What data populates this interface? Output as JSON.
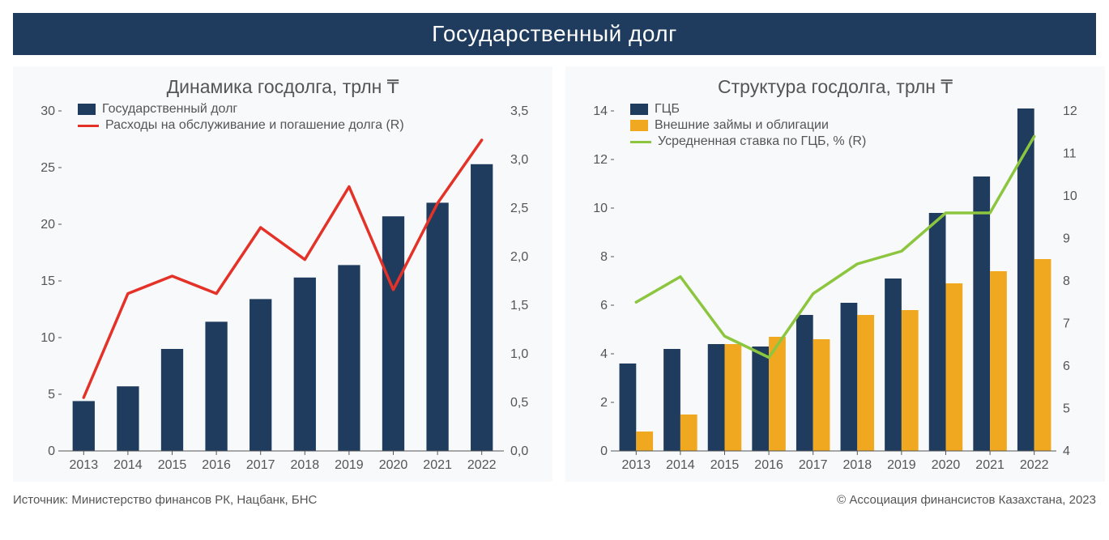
{
  "title": "Государственный долг",
  "footer_left": "Источник: Министерство финансов РК, Нацбанк, БНС",
  "footer_right": "© Ассоциация финансистов Казахстана, 2023",
  "colors": {
    "title_bg": "#1f3c5f",
    "title_text": "#ffffff",
    "panel_bg": "#f8f9fa",
    "text": "#555555",
    "bar_blue": "#1f3c5f",
    "bar_yellow": "#f0a821",
    "line_red": "#e43228",
    "line_green": "#8cc63f",
    "axis": "#555555"
  },
  "left_chart": {
    "type": "bar+line",
    "title": "Динамика госдолга, трлн ₸",
    "categories": [
      "2013",
      "2014",
      "2015",
      "2016",
      "2017",
      "2018",
      "2019",
      "2020",
      "2021",
      "2022"
    ],
    "bars": {
      "label": "Государственный долг",
      "color": "#1f3c5f",
      "values": [
        4.4,
        5.7,
        9.0,
        11.4,
        13.4,
        15.3,
        16.4,
        20.7,
        21.9,
        25.3
      ]
    },
    "line": {
      "label": "Расходы на обслуживание и погашение долга (R)",
      "color": "#e43228",
      "values": [
        0.55,
        1.62,
        1.8,
        1.62,
        2.3,
        1.97,
        2.72,
        1.66,
        2.55,
        3.2
      ]
    },
    "y_left": {
      "min": 0,
      "max": 30,
      "ticks": [
        0,
        5,
        10,
        15,
        20,
        25,
        30
      ]
    },
    "y_right": {
      "min": 0.0,
      "max": 3.5,
      "ticks": [
        "0,0",
        "0,5",
        "1,0",
        "1,5",
        "2,0",
        "2,5",
        "3,0",
        "3,5"
      ]
    },
    "bar_width": 0.5,
    "line_width": 3.5,
    "tick_fontsize": 16,
    "title_fontsize": 23
  },
  "right_chart": {
    "type": "grouped-bar+line",
    "title": "Структура госдолга, трлн ₸",
    "categories": [
      "2013",
      "2014",
      "2015",
      "2016",
      "2017",
      "2018",
      "2019",
      "2020",
      "2021",
      "2022"
    ],
    "bars_a": {
      "label": "ГЦБ",
      "color": "#1f3c5f",
      "values": [
        3.6,
        4.2,
        4.4,
        4.3,
        5.6,
        6.1,
        7.1,
        9.8,
        11.3,
        14.1
      ]
    },
    "bars_b": {
      "label": "Внешние займы и облигации",
      "color": "#f0a821",
      "values": [
        0.8,
        1.5,
        4.4,
        4.7,
        4.6,
        5.6,
        5.8,
        6.9,
        7.4,
        7.9
      ]
    },
    "line": {
      "label": "Усредненная ставка по ГЦБ, % (R)",
      "color": "#8cc63f",
      "values": [
        7.5,
        8.1,
        6.7,
        6.2,
        7.7,
        8.4,
        8.7,
        9.6,
        9.6,
        11.4
      ]
    },
    "y_left": {
      "min": 0,
      "max": 14,
      "ticks": [
        0,
        2,
        4,
        6,
        8,
        10,
        12,
        14
      ]
    },
    "y_right": {
      "min": 4,
      "max": 12,
      "ticks": [
        4,
        5,
        6,
        7,
        8,
        9,
        10,
        11,
        12
      ]
    },
    "bar_width": 0.38,
    "line_width": 3.5,
    "tick_fontsize": 16,
    "title_fontsize": 23
  }
}
